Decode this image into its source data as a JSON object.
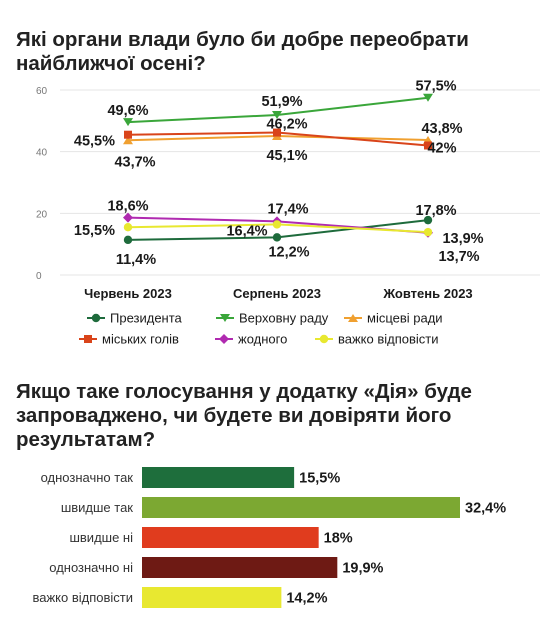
{
  "chart_data": [
    {
      "type": "line",
      "title": "Які органи влади було би добре переобрати найближчої осені?",
      "categories": [
        "Червень 2023",
        "Серпень 2023",
        "Жовтень 2023"
      ],
      "y_ticks": [
        "0",
        "20",
        "40",
        "60"
      ],
      "ylim": [
        0,
        60
      ],
      "grid": true,
      "legend_position": "bottom",
      "series": [
        {
          "name": "Президента",
          "color": "#1e6b3c",
          "marker": "circle",
          "values": [
            11.4,
            12.2,
            17.8
          ],
          "labels": [
            "11,4%",
            "12,2%",
            "17,8%"
          ]
        },
        {
          "name": "Верховну раду",
          "color": "#3aa63a",
          "marker": "triangle-down",
          "values": [
            49.6,
            51.9,
            57.5
          ],
          "labels": [
            "49,6%",
            "51,9%",
            "57,5%"
          ]
        },
        {
          "name": "місцеві ради",
          "color": "#f0a030",
          "marker": "triangle-up",
          "values": [
            43.7,
            45.1,
            43.8
          ],
          "labels": [
            "43,7%",
            "45,1%",
            "43,8%"
          ]
        },
        {
          "name": "міських голів",
          "color": "#d9441a",
          "marker": "square",
          "values": [
            45.5,
            46.2,
            42.0
          ],
          "labels": [
            "45,5%",
            "46,2%",
            "42%"
          ]
        },
        {
          "name": "жодного",
          "color": "#b02ab0",
          "marker": "diamond",
          "values": [
            18.6,
            17.4,
            13.7
          ],
          "labels": [
            "18,6%",
            "17,4%",
            "13,7%"
          ]
        },
        {
          "name": "важко відповісти",
          "color": "#e8e830",
          "marker": "circle",
          "values": [
            15.5,
            16.4,
            13.9
          ],
          "labels": [
            "15,5%",
            "16,4%",
            "13,9%"
          ]
        }
      ]
    },
    {
      "type": "bar",
      "orientation": "horizontal",
      "title": "Якщо таке голосування у додатку «Дія» буде запроваджено, чи будете ви довіряти його результатам?",
      "categories": [
        "однозначно так",
        "швидше так",
        "швидше ні",
        "однозначно ні",
        "важко відповісти"
      ],
      "values": [
        15.5,
        32.4,
        18.0,
        19.9,
        14.2
      ],
      "labels": [
        "15,5%",
        "32,4%",
        "18%",
        "19,9%",
        "14,2%"
      ],
      "colors": [
        "#1e6e3c",
        "#7ca832",
        "#e03c1e",
        "#6e1a14",
        "#e8e830"
      ],
      "xlim": [
        0,
        32.4
      ]
    }
  ]
}
